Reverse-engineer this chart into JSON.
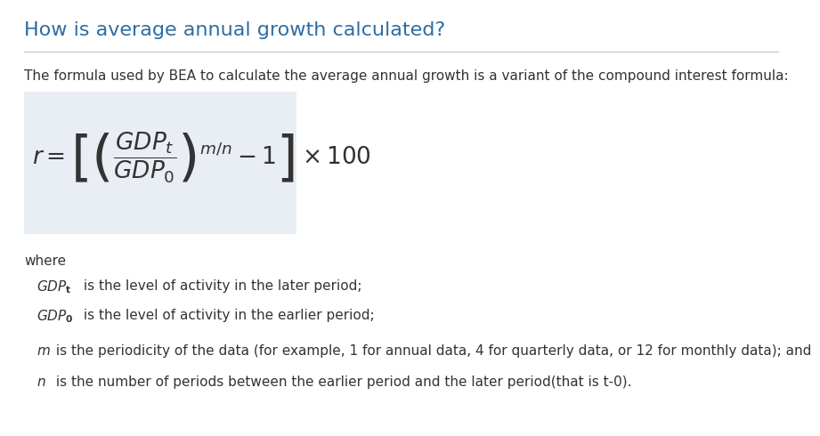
{
  "title": "How is average annual growth calculated?",
  "title_color": "#2e6da4",
  "title_fontsize": 16,
  "bg_color": "#ffffff",
  "intro_text": "The formula used by BEA to calculate the average annual growth is a variant of the compound interest formula:",
  "intro_fontsize": 11,
  "formula_box_color": "#e8eef4",
  "where_text": "where",
  "definitions": [
    {
      "bold_italic": "GDP",
      "subscript": "t",
      "rest": " is the level of activity in the later period;"
    },
    {
      "bold_italic": "GDP",
      "subscript": "0",
      "rest": " is the level of activity in the earlier period;"
    },
    {
      "bold_italic": "m",
      "subscript": "",
      "rest": " is the periodicity of the data (for example, 1 for annual data, 4 for quarterly data, or 12 for monthly data); and"
    },
    {
      "bold_italic": "n",
      "subscript": "",
      "rest": " is the number of periods between the earlier period and the later period(that is t-0)."
    }
  ],
  "text_color": "#333333",
  "body_fontsize": 11,
  "line_color": "#cccccc",
  "formula": "$\\it{r} = \\left[\\left(\\dfrac{GDP_t}{GDP_0}\\right)^{m/n} - 1\\right] \\times 100$"
}
